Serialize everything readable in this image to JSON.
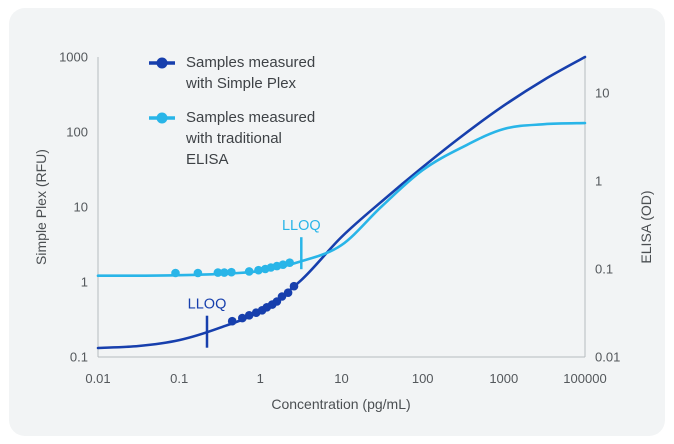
{
  "chart_data": {
    "type": "line",
    "title": "",
    "x_axis": {
      "label": "Concentration (pg/mL)",
      "scale": "log",
      "ticks": [
        "0.01",
        "0.1",
        "1",
        "10",
        "100",
        "1000",
        "100000"
      ]
    },
    "y_axis_left": {
      "label": "Simple Plex (RFU)",
      "scale": "log",
      "ticks": [
        "1000",
        "100",
        "10",
        "1",
        "0.1"
      ],
      "range": [
        0.1,
        1000
      ]
    },
    "y_axis_right": {
      "label": "ELISA (OD)",
      "scale": "log",
      "ticks": [
        "10",
        "1",
        "0.1",
        "0.01"
      ],
      "range": [
        0.01,
        25.7
      ]
    },
    "colors": {
      "simple_plex": "#173fad",
      "elisa": "#29b5e8",
      "axis_line": "#b6bbbe",
      "tick_text": "#54585c"
    },
    "series": [
      {
        "id": "simple_plex",
        "name": "Samples measured with Simple Plex",
        "color": "#173fad",
        "axis": "left",
        "curve": [
          [
            0.01,
            0.132
          ],
          [
            0.0316,
            0.14
          ],
          [
            0.1,
            0.168
          ],
          [
            0.316,
            0.245
          ],
          [
            1,
            0.41
          ],
          [
            3.16,
            1.05
          ],
          [
            10,
            3.98
          ],
          [
            31.6,
            12
          ],
          [
            100,
            34
          ],
          [
            316,
            91
          ],
          [
            1000,
            225
          ],
          [
            10000,
            500
          ],
          [
            100000,
            1000
          ]
        ],
        "points": [
          [
            0.45,
            0.3
          ],
          [
            0.6,
            0.33
          ],
          [
            0.73,
            0.36
          ],
          [
            0.89,
            0.39
          ],
          [
            1.05,
            0.42
          ],
          [
            1.2,
            0.46
          ],
          [
            1.4,
            0.5
          ],
          [
            1.6,
            0.55
          ],
          [
            1.85,
            0.64
          ],
          [
            2.2,
            0.72
          ],
          [
            2.6,
            0.88
          ]
        ],
        "lloq": {
          "label": "LLOQ",
          "x": 0.22
        }
      },
      {
        "id": "elisa",
        "name": "Samples measured with traditional ELISA",
        "color": "#29b5e8",
        "axis": "right",
        "curve": [
          [
            0.01,
            0.084
          ],
          [
            0.0316,
            0.084
          ],
          [
            0.1,
            0.085
          ],
          [
            0.316,
            0.088
          ],
          [
            1,
            0.095
          ],
          [
            3.16,
            0.122
          ],
          [
            10,
            0.187
          ],
          [
            31.6,
            0.52
          ],
          [
            100,
            1.33
          ],
          [
            316,
            2.45
          ],
          [
            1000,
            3.9
          ],
          [
            10000,
            4.42
          ],
          [
            100000,
            4.55
          ]
        ],
        "points": [
          [
            0.09,
            0.09
          ],
          [
            0.17,
            0.09
          ],
          [
            0.3,
            0.091
          ],
          [
            0.36,
            0.091
          ],
          [
            0.44,
            0.092
          ],
          [
            0.73,
            0.094
          ],
          [
            0.95,
            0.097
          ],
          [
            1.15,
            0.1
          ],
          [
            1.35,
            0.104
          ],
          [
            1.6,
            0.108
          ],
          [
            1.9,
            0.112
          ],
          [
            2.3,
            0.118
          ]
        ],
        "lloq": {
          "label": "LLOQ",
          "x": 3.2
        }
      }
    ]
  }
}
